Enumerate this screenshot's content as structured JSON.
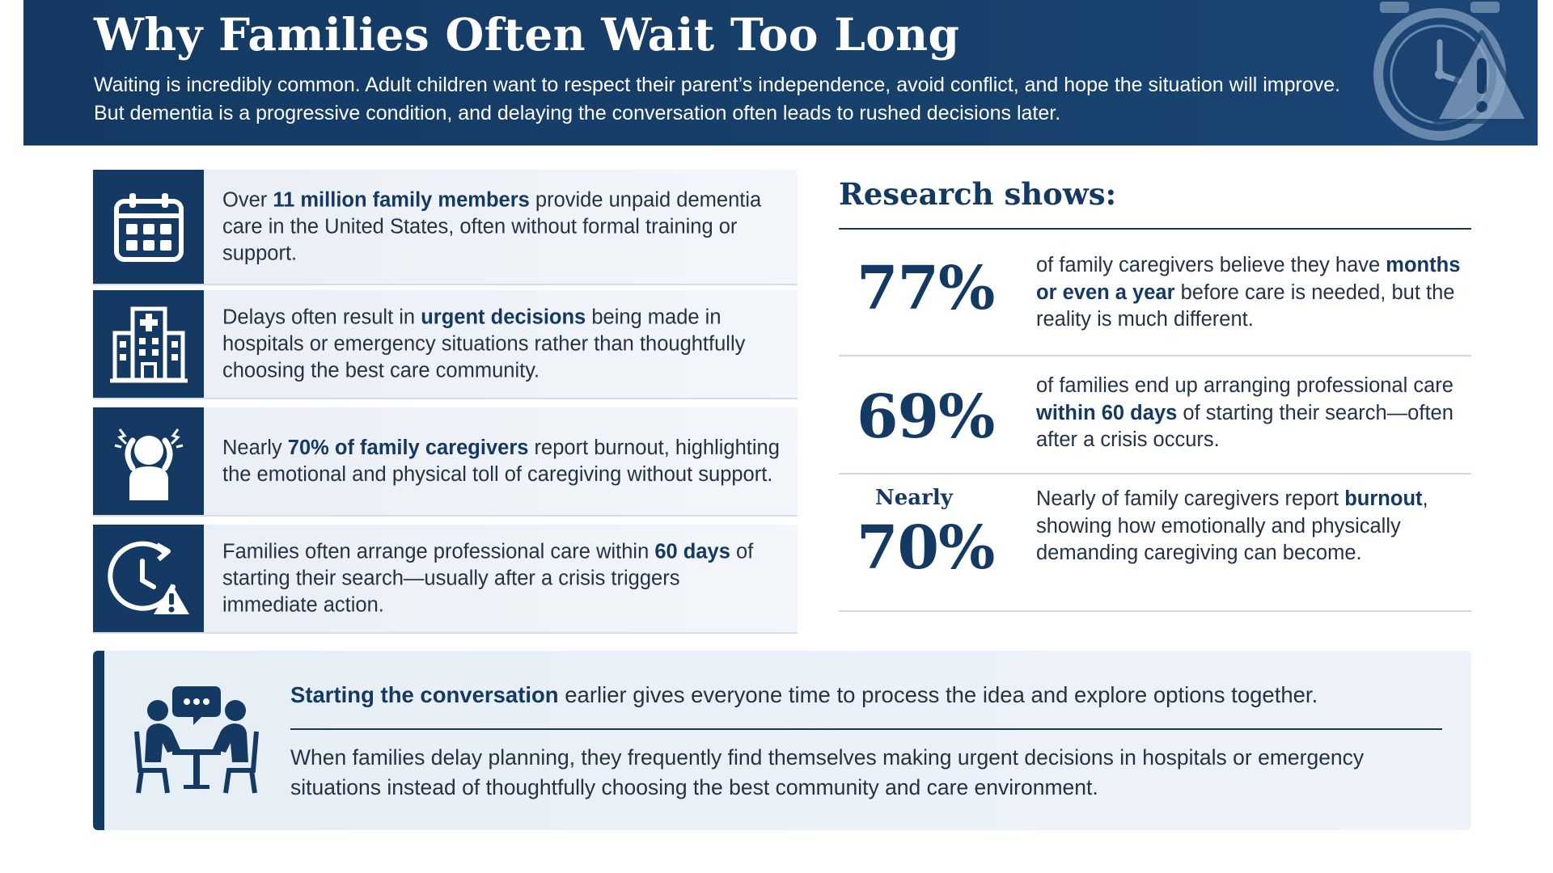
{
  "header": {
    "title": "Why Families Often Wait Too Long",
    "subtitle": "Waiting is incredibly common. Adult children want to respect their parent’s independence, avoid conflict, and hope the situation will improve. But dementia is a progressive condition, and delaying the conversation often leads to rushed decisions later.",
    "icons": [
      "clock-icon",
      "warning-icon"
    ]
  },
  "facts": [
    {
      "icon": "calendar-icon",
      "pre": "Over ",
      "bold": "11 million family members",
      "post": " provide unpaid dementia care in the United States, often without formal training or support."
    },
    {
      "icon": "hospital-icon",
      "pre": "Delays often result in ",
      "bold": "urgent decisions",
      "post": " being made in hospitals or emergency situations rather than thoughtfully choosing the best care community."
    },
    {
      "icon": "stressed-person-icon",
      "pre": "Nearly ",
      "bold": "70% of family caregivers",
      "post": " report burnout, highlighting the emotional and physical toll of caregiving without support."
    },
    {
      "icon": "clock-warning-icon",
      "pre": "Families often arrange professional care within ",
      "bold": "60 days",
      "post": " of starting their search—usually after a crisis triggers immediate action."
    }
  ],
  "research": {
    "title": "Research shows:",
    "stats": [
      {
        "prefix": "",
        "value": "77%",
        "pre": "of family caregivers believe they have ",
        "bold": "months or even a year",
        "post": " before care is needed, but the reality is much different."
      },
      {
        "prefix": "",
        "value": "69%",
        "pre": "of families end up arranging professional care ",
        "bold": "within 60 days",
        "post": " of starting their search—often after a crisis occurs."
      },
      {
        "prefix": "Nearly",
        "value": "70%",
        "pre": "Nearly of family caregivers report ",
        "bold": "burnout",
        "post": ", showing how emotionally and physically demanding caregiving can become."
      }
    ]
  },
  "panel": {
    "icon": "conversation-icon",
    "lead_bold": "Starting the conversation",
    "lead_rest": " earlier gives everyone time to process the idea and explore options together.",
    "body": "When families delay planning, they frequently find themselves making urgent decisions in hospitals or emergency situations instead of thoughtfully choosing the best community and care environment."
  }
}
